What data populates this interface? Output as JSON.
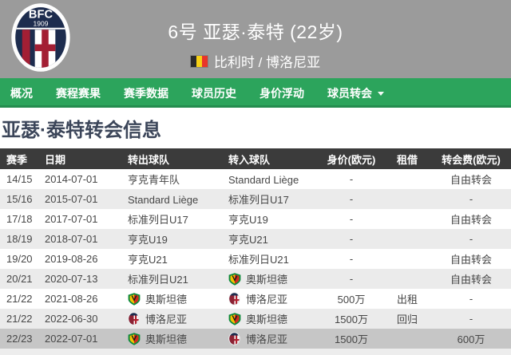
{
  "header": {
    "badge": {
      "abbr": "BFC",
      "year": "1909"
    },
    "title": "6号 亚瑟·泰特 (22岁)",
    "flag": "belgium",
    "subtitle": "比利时 / 博洛尼亚"
  },
  "nav": {
    "items": [
      {
        "label": "概况",
        "dropdown": false
      },
      {
        "label": "赛程赛果",
        "dropdown": false
      },
      {
        "label": "赛季数据",
        "dropdown": false
      },
      {
        "label": "球员历史",
        "dropdown": false
      },
      {
        "label": "身价浮动",
        "dropdown": false
      },
      {
        "label": "球员转会",
        "dropdown": true
      }
    ]
  },
  "section": {
    "title": "亚瑟·泰特转会信息"
  },
  "table": {
    "columns": [
      "赛季",
      "日期",
      "转出球队",
      "转入球队",
      "身价(欧元)",
      "租借",
      "转会费(欧元)"
    ],
    "rows": [
      {
        "season": "14/15",
        "date": "2014-07-01",
        "from": "亨克青年队",
        "from_logo": "",
        "to": "Standard Liège",
        "to_logo": "",
        "value": "-",
        "loan": "",
        "fee": "自由转会",
        "highlight": false
      },
      {
        "season": "15/16",
        "date": "2015-07-01",
        "from": "Standard Liège",
        "from_logo": "",
        "to": "标准列日U17",
        "to_logo": "",
        "value": "-",
        "loan": "",
        "fee": "-",
        "highlight": false
      },
      {
        "season": "17/18",
        "date": "2017-07-01",
        "from": "标准列日U17",
        "from_logo": "",
        "to": "亨克U19",
        "to_logo": "",
        "value": "-",
        "loan": "",
        "fee": "自由转会",
        "highlight": false
      },
      {
        "season": "18/19",
        "date": "2018-07-01",
        "from": "亨克U19",
        "from_logo": "",
        "to": "亨克U21",
        "to_logo": "",
        "value": "-",
        "loan": "",
        "fee": "-",
        "highlight": false
      },
      {
        "season": "19/20",
        "date": "2019-08-26",
        "from": "亨克U21",
        "from_logo": "",
        "to": "标准列日U21",
        "to_logo": "",
        "value": "-",
        "loan": "",
        "fee": "自由转会",
        "highlight": false
      },
      {
        "season": "20/21",
        "date": "2020-07-13",
        "from": "标准列日U21",
        "from_logo": "",
        "to": "奥斯坦德",
        "to_logo": "oostende",
        "value": "-",
        "loan": "",
        "fee": "自由转会",
        "highlight": false
      },
      {
        "season": "21/22",
        "date": "2021-08-26",
        "from": "奥斯坦德",
        "from_logo": "oostende",
        "to": "博洛尼亚",
        "to_logo": "bologna",
        "value": "500万",
        "loan": "出租",
        "fee": "-",
        "highlight": false
      },
      {
        "season": "21/22",
        "date": "2022-06-30",
        "from": "博洛尼亚",
        "from_logo": "bologna",
        "to": "奥斯坦德",
        "to_logo": "oostende",
        "value": "1500万",
        "loan": "回归",
        "fee": "-",
        "highlight": false
      },
      {
        "season": "22/23",
        "date": "2022-07-01",
        "from": "奥斯坦德",
        "from_logo": "oostende",
        "to": "博洛尼亚",
        "to_logo": "bologna",
        "value": "1500万",
        "loan": "",
        "fee": "600万",
        "highlight": true
      }
    ]
  },
  "colors": {
    "header_gray": "#9b9b9b",
    "nav_green": "#2ca45c",
    "section_title_text": "#3b4559",
    "table_header_bg": "#3b3b3b",
    "row_alt": "#ebebeb",
    "row_highlight": "#c6c6c6",
    "cell_text": "#474747"
  }
}
